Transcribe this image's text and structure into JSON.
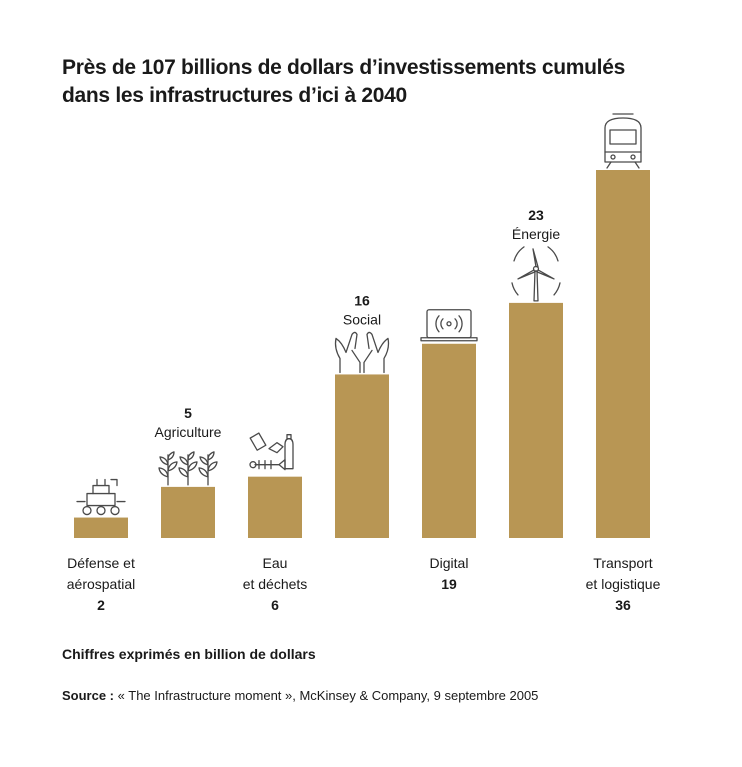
{
  "title_lines": [
    "Près de 107 billions de dollars d’investissements cumulés",
    "dans les infrastructures d’ici à 2040"
  ],
  "note": "Chiffres exprimés en billion de dollars",
  "source": {
    "prefix": "Source :",
    "text": "« The Infrastructure moment », McKinsey & Company, 9 septembre 2005"
  },
  "colors": {
    "bar": "#b89654",
    "text": "#1a1a1a",
    "icon": "#4a4a4a"
  },
  "chart_data": {
    "type": "bar",
    "categories": [
      [
        "Défense et",
        "aérospatial"
      ],
      [
        "Agriculture"
      ],
      [
        "Eau",
        "et déchets"
      ],
      [
        "Social"
      ],
      [
        "Digital"
      ],
      [
        "Énergie"
      ],
      [
        "Transport",
        "et logistique"
      ]
    ],
    "values": [
      2,
      5,
      6,
      16,
      19,
      23,
      36
    ],
    "label_position": [
      "below",
      "above",
      "below",
      "above",
      "below",
      "above",
      "below"
    ],
    "icons": [
      "rover-icon",
      "plants-icon",
      "waste-icon",
      "hands-icon",
      "laptop-icon",
      "wind-turbine-icon",
      "train-icon"
    ],
    "ylim": [
      0,
      36
    ],
    "grid": false,
    "legend": "none"
  }
}
